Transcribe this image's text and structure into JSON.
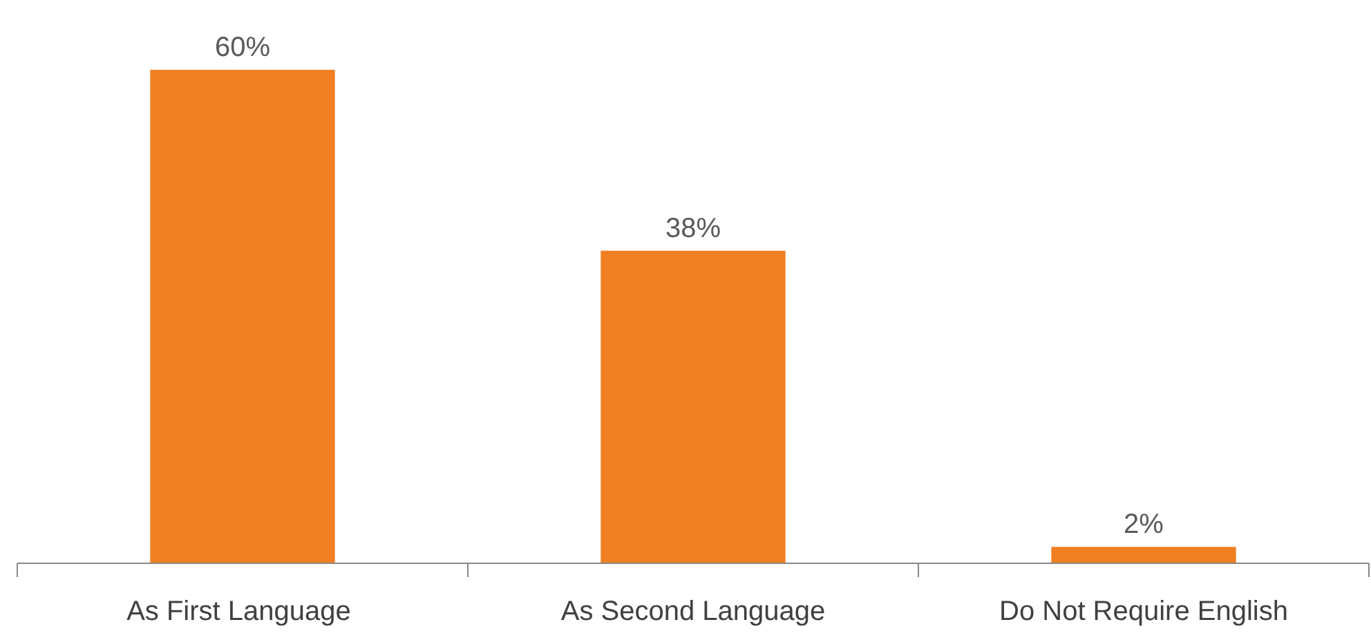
{
  "chart_data": {
    "type": "bar",
    "categories": [
      "As First  Language",
      "As Second Language",
      "Do Not Require English"
    ],
    "values": [
      60,
      38,
      2
    ],
    "color": "#f07f22",
    "value_labels": [
      "60%",
      "38%",
      "2%"
    ],
    "grid": false
  }
}
